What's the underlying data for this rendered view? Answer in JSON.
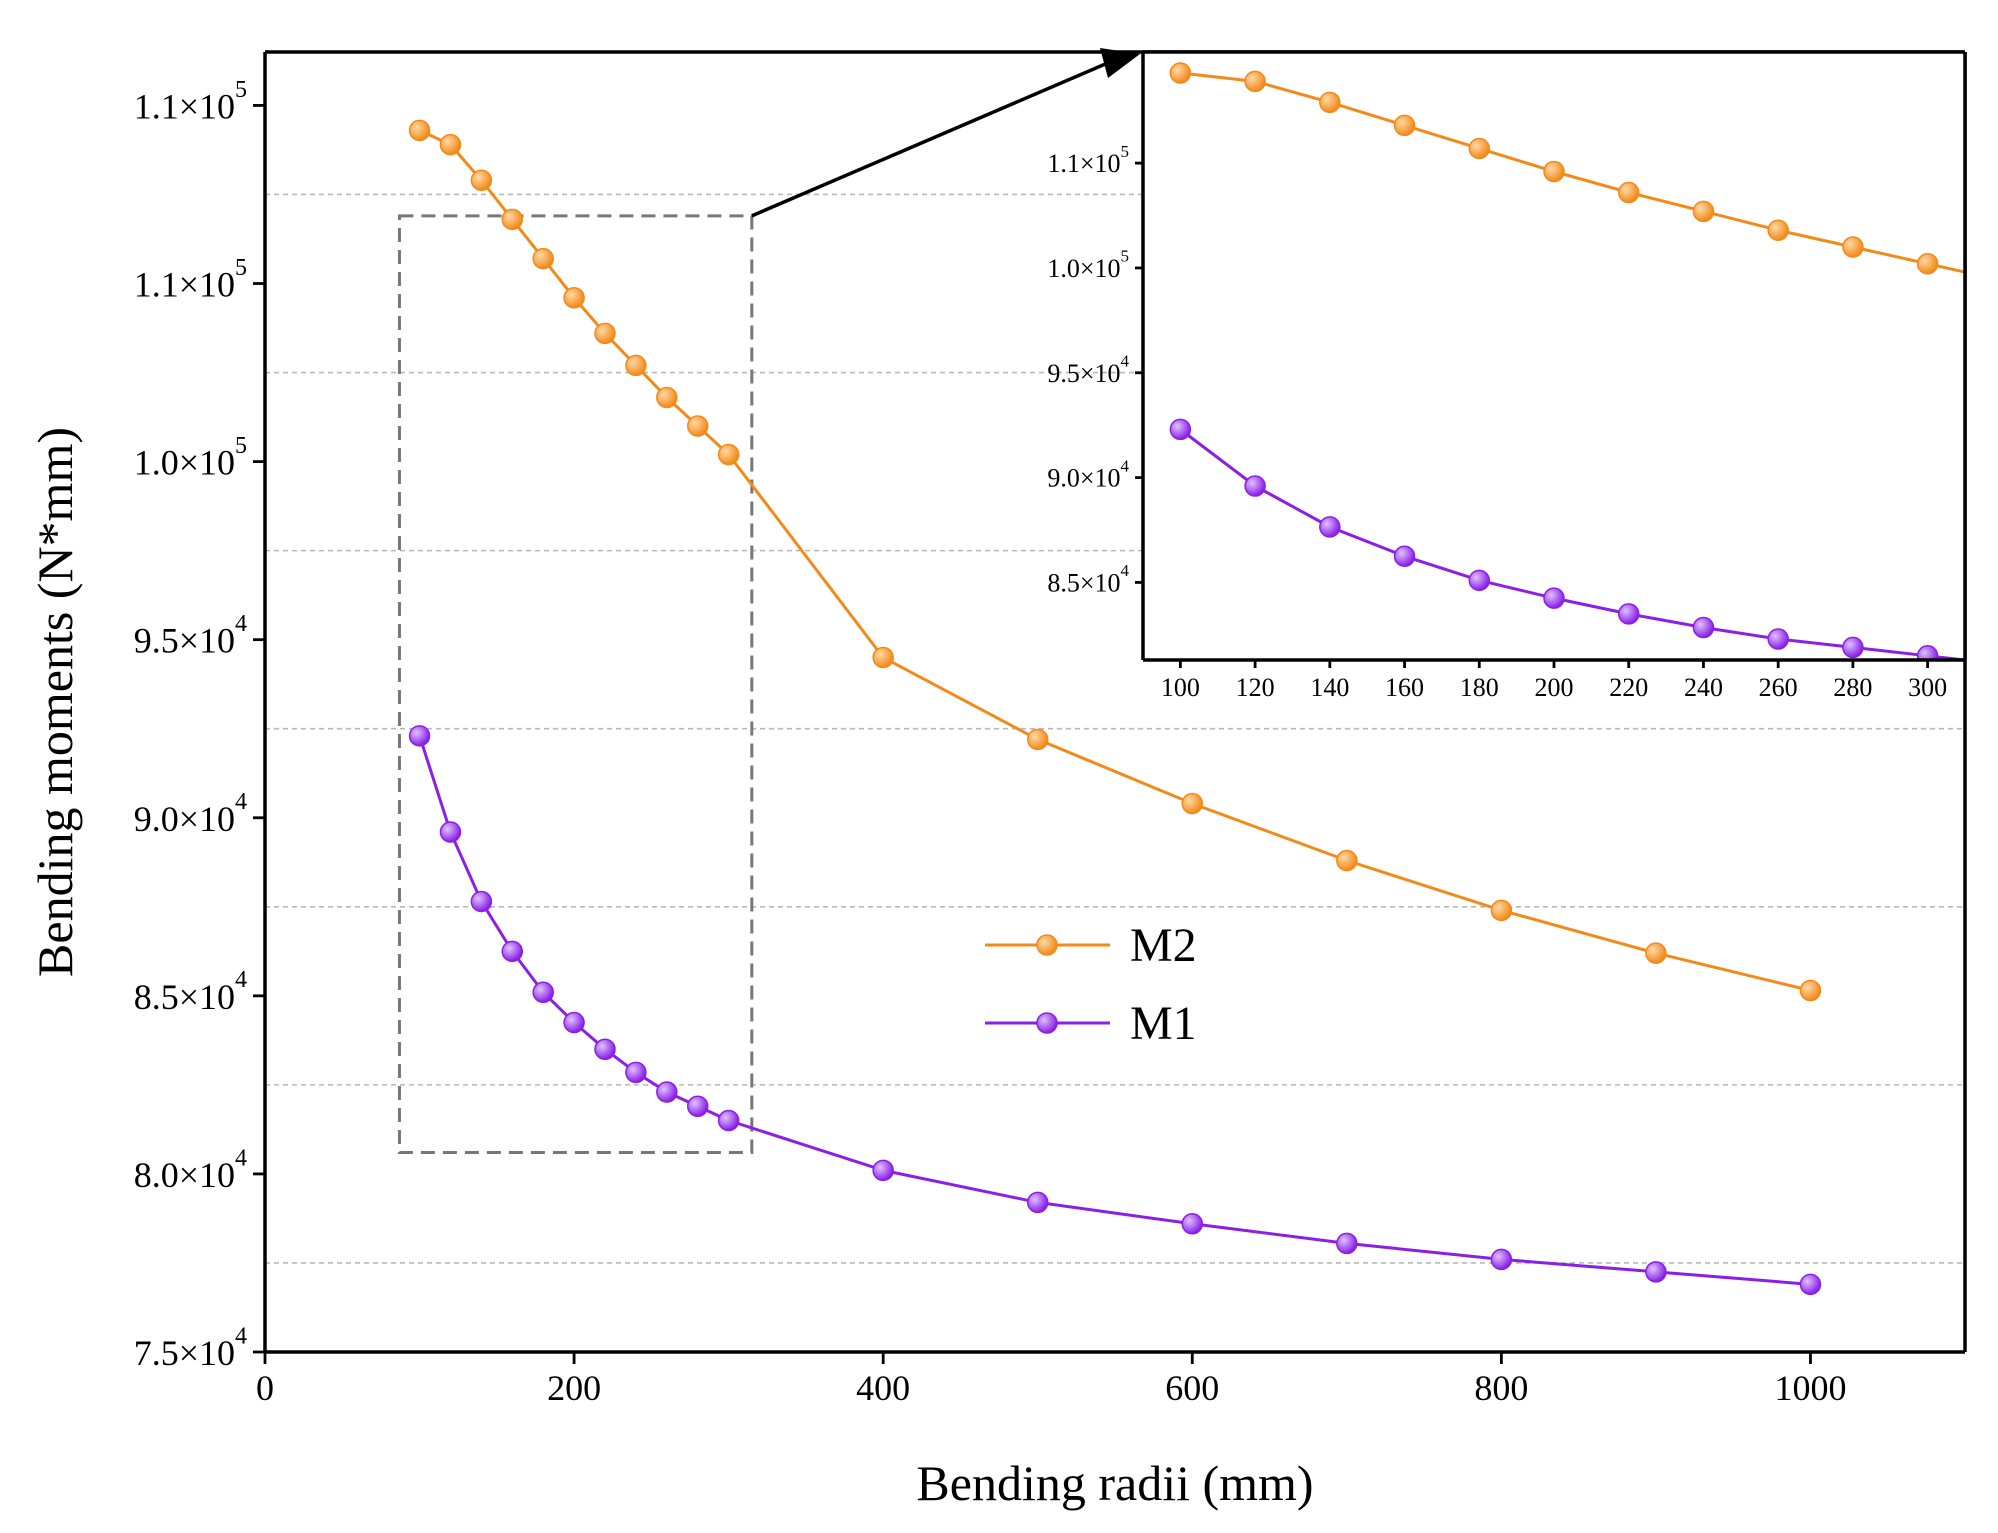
{
  "chart_data": [
    {
      "id": "main",
      "type": "line",
      "title": "",
      "xlabel": "Bending radii (mm)",
      "ylabel": "Bending moments (N*mm)",
      "xlim": [
        0,
        1100
      ],
      "ylim": [
        75000,
        111500
      ],
      "xticks": [
        0,
        200,
        400,
        600,
        800,
        1000
      ],
      "xtick_labels": [
        "0",
        "200",
        "400",
        "600",
        "800",
        "1000"
      ],
      "yticks": [
        75000,
        80000,
        85000,
        90000,
        95000,
        100000,
        105000,
        110000
      ],
      "ytick_labels": [
        {
          "mant": "7.5×10",
          "exp": "4"
        },
        {
          "mant": "8.0×10",
          "exp": "4"
        },
        {
          "mant": "8.5×10",
          "exp": "4"
        },
        {
          "mant": "9.0×10",
          "exp": "4"
        },
        {
          "mant": "9.5×10",
          "exp": "4"
        },
        {
          "mant": "1.0×10",
          "exp": "5"
        },
        {
          "mant": "1.1×10",
          "exp": "5"
        },
        {
          "mant": "1.1×10",
          "exp": "5"
        }
      ],
      "minor_gridlines_y": [
        77500,
        82500,
        87500,
        92500,
        97500,
        102500,
        107500
      ],
      "legend": {
        "position": "center-right",
        "entries": [
          "M2",
          "M1"
        ]
      },
      "series": [
        {
          "name": "M2",
          "color": "#f28a1a",
          "x": [
            100,
            120,
            140,
            160,
            180,
            200,
            220,
            240,
            260,
            280,
            300,
            400,
            500,
            600,
            700,
            800,
            900,
            1000
          ],
          "values": [
            109300,
            108900,
            107900,
            106800,
            105700,
            104600,
            103600,
            102700,
            101800,
            101000,
            100200,
            94500,
            92200,
            90400,
            88800,
            87400,
            86200,
            85150
          ]
        },
        {
          "name": "M1",
          "color": "#8a1fe6",
          "x": [
            100,
            120,
            140,
            160,
            180,
            200,
            220,
            240,
            260,
            280,
            300,
            400,
            500,
            600,
            700,
            800,
            900,
            1000
          ],
          "values": [
            92300,
            89600,
            87650,
            86250,
            85100,
            84250,
            83500,
            82850,
            82300,
            81900,
            81500,
            80100,
            79200,
            78600,
            78050,
            77600,
            77250,
            76900
          ]
        }
      ],
      "zoom_box": {
        "xlim": [
          87,
          315
        ],
        "ylim": [
          80600,
          106900
        ]
      }
    },
    {
      "id": "inset",
      "type": "line",
      "title": "",
      "xlabel": "",
      "ylabel": "",
      "xlim": [
        90,
        310
      ],
      "ylim": [
        81300,
        110300
      ],
      "xticks": [
        100,
        120,
        140,
        160,
        180,
        200,
        220,
        240,
        260,
        280,
        300
      ],
      "xtick_labels": [
        "100",
        "120",
        "140",
        "160",
        "180",
        "200",
        "220",
        "240",
        "260",
        "280",
        "300"
      ],
      "yticks": [
        85000,
        90000,
        95000,
        100000,
        105000
      ],
      "ytick_labels": [
        {
          "mant": "8.5×10",
          "exp": "4"
        },
        {
          "mant": "9.0×10",
          "exp": "4"
        },
        {
          "mant": "9.5×10",
          "exp": "4"
        },
        {
          "mant": "1.0×10",
          "exp": "5"
        },
        {
          "mant": "1.1×10",
          "exp": "5"
        }
      ],
      "series": [
        {
          "name": "M2",
          "color": "#f28a1a",
          "x": [
            100,
            120,
            140,
            160,
            180,
            200,
            220,
            240,
            260,
            280,
            300
          ],
          "values": [
            109300,
            108900,
            107900,
            106800,
            105700,
            104600,
            103600,
            102700,
            101800,
            101000,
            100200
          ]
        },
        {
          "name": "M1",
          "color": "#8a1fe6",
          "x": [
            100,
            120,
            140,
            160,
            180,
            200,
            220,
            240,
            260,
            280,
            300
          ],
          "values": [
            92300,
            89600,
            87650,
            86250,
            85100,
            84250,
            83500,
            82850,
            82300,
            81900,
            81500
          ]
        }
      ]
    }
  ]
}
